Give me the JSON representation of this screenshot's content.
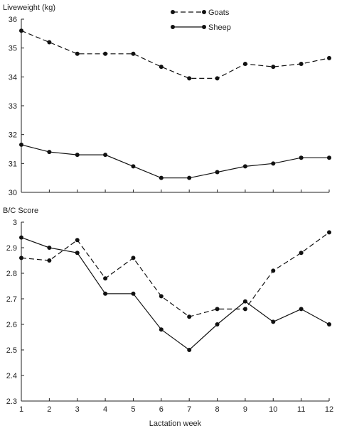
{
  "chart_data": [
    {
      "type": "line",
      "title": "",
      "ylabel": "Liveweight (kg)",
      "xlabel": "",
      "x": [
        1,
        2,
        3,
        4,
        5,
        6,
        7,
        8,
        9,
        10,
        11,
        12
      ],
      "ylim": [
        30,
        36
      ],
      "yticks": [
        "30",
        "31",
        "32",
        "33",
        "34",
        "35",
        "36"
      ],
      "xticks": [],
      "legend_position": "top-center",
      "series": [
        {
          "name": "Goats",
          "style": "dashed",
          "color": "#111111",
          "values": [
            35.6,
            35.2,
            34.8,
            34.8,
            34.8,
            34.35,
            33.95,
            33.95,
            34.45,
            34.35,
            34.45,
            34.65
          ]
        },
        {
          "name": "Sheep",
          "style": "solid",
          "color": "#111111",
          "values": [
            31.65,
            31.4,
            31.3,
            31.3,
            30.9,
            30.5,
            30.5,
            30.7,
            30.9,
            31.0,
            31.2,
            31.2
          ]
        }
      ]
    },
    {
      "type": "line",
      "title": "",
      "ylabel": "B/C Score",
      "xlabel": "Lactation week",
      "x": [
        1,
        2,
        3,
        4,
        5,
        6,
        7,
        8,
        9,
        10,
        11,
        12
      ],
      "ylim": [
        2.3,
        3.0
      ],
      "yticks": [
        "2.3",
        "2.4",
        "2.5",
        "2.6",
        "2.7",
        "2.8",
        "2.9",
        "3"
      ],
      "xticks": [
        "1",
        "2",
        "3",
        "4",
        "5",
        "6",
        "7",
        "8",
        "9",
        "10",
        "11",
        "12"
      ],
      "series": [
        {
          "name": "Goats",
          "style": "dashed",
          "color": "#111111",
          "values": [
            2.86,
            2.85,
            2.93,
            2.78,
            2.86,
            2.71,
            2.63,
            2.66,
            2.66,
            2.81,
            2.88,
            2.96
          ]
        },
        {
          "name": "Sheep",
          "style": "solid",
          "color": "#111111",
          "values": [
            2.94,
            2.9,
            2.88,
            2.72,
            2.72,
            2.58,
            2.5,
            2.6,
            2.69,
            2.61,
            2.66,
            2.6
          ]
        }
      ]
    }
  ]
}
